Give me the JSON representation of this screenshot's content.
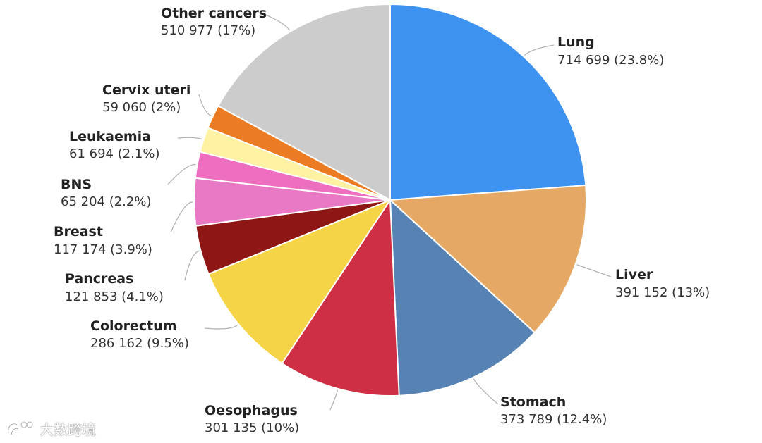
{
  "chart_data": {
    "type": "pie",
    "title": "",
    "slices": [
      {
        "label": "Lung",
        "value": 714699,
        "value_text": "714 699 (23.8%)",
        "percent": 23.8,
        "color": "#3f93f0"
      },
      {
        "label": "Liver",
        "value": 391152,
        "value_text": "391 152 (13%)",
        "percent": 13,
        "color": "#e6a965"
      },
      {
        "label": "Stomach",
        "value": 373789,
        "value_text": "373 789 (12.4%)",
        "percent": 12.4,
        "color": "#5683b4"
      },
      {
        "label": "Oesophagus",
        "value": 301135,
        "value_text": "301 135 (10%)",
        "percent": 10,
        "color": "#cf2f45"
      },
      {
        "label": "Colorectum",
        "value": 286162,
        "value_text": "286 162 (9.5%)",
        "percent": 9.5,
        "color": "#f6d447"
      },
      {
        "label": "Pancreas",
        "value": 121853,
        "value_text": "121 853 (4.1%)",
        "percent": 4.1,
        "color": "#8e1614"
      },
      {
        "label": "Breast",
        "value": 117174,
        "value_text": "117 174 (3.9%)",
        "percent": 3.9,
        "color": "#e978c5"
      },
      {
        "label": "BNS",
        "value": 65204,
        "value_text": "65 204 (2.2%)",
        "percent": 2.2,
        "color": "#ee6fbf"
      },
      {
        "label": "Leukaemia",
        "value": 61694,
        "value_text": "61 694 (2.1%)",
        "percent": 2.1,
        "color": "#fff2a3"
      },
      {
        "label": "Cervix uteri",
        "value": 59060,
        "value_text": "59 060 (2%)",
        "percent": 2,
        "color": "#eb7c24"
      },
      {
        "label": "Other cancers",
        "value": 510977,
        "value_text": "510 977 (17%)",
        "percent": 17,
        "color": "#cccccc"
      }
    ],
    "start_direction": "top",
    "order": "clockwise",
    "legend": "none",
    "labels": "outside-with-leader-lines"
  },
  "watermark": {
    "text": "大数跨境",
    "icon": "watermark-logo-icon"
  }
}
